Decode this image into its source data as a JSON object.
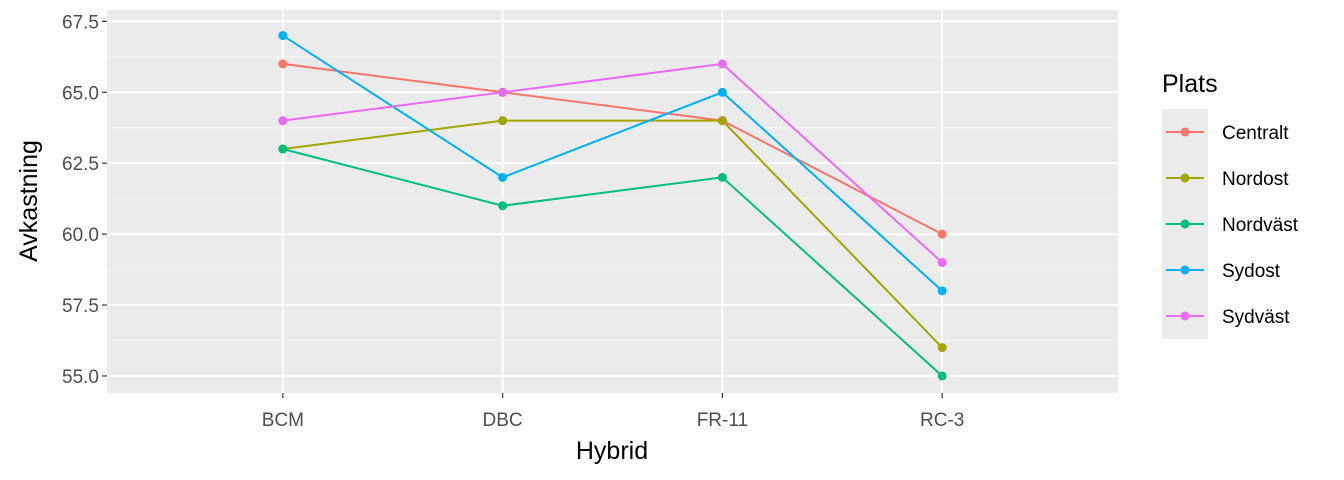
{
  "chart_data": {
    "type": "line",
    "xlabel": "Hybrid",
    "ylabel": "Avkastning",
    "categories": [
      "BCM",
      "DBC",
      "FR-11",
      "RC-3"
    ],
    "ylim": [
      54.4,
      67.9
    ],
    "yticks": [
      55.0,
      57.5,
      60.0,
      62.5,
      65.0,
      67.5
    ],
    "ytick_labels": [
      "55.0",
      "57.5",
      "60.0",
      "62.5",
      "65.0",
      "67.5"
    ],
    "grid": true,
    "legend_title": "Plats",
    "legend_position": "right",
    "series": [
      {
        "name": "Centralt",
        "color": "#F8766D",
        "values": [
          66,
          65,
          64,
          60
        ]
      },
      {
        "name": "Nordost",
        "color": "#A3A500",
        "values": [
          63,
          64,
          64,
          56
        ]
      },
      {
        "name": "Nordväst",
        "color": "#00BF7D",
        "values": [
          63,
          61,
          62,
          55
        ]
      },
      {
        "name": "Sydost",
        "color": "#00B0F6",
        "values": [
          67,
          62,
          65,
          58
        ]
      },
      {
        "name": "Sydväst",
        "color": "#E76BF3",
        "values": [
          64,
          65,
          66,
          59
        ]
      }
    ]
  },
  "colors": {
    "panel_background": "#EBEBEB",
    "major_grid": "#FFFFFF",
    "minor_grid": "#F5F5F5",
    "legend_key_background": "#EBEBEB"
  }
}
